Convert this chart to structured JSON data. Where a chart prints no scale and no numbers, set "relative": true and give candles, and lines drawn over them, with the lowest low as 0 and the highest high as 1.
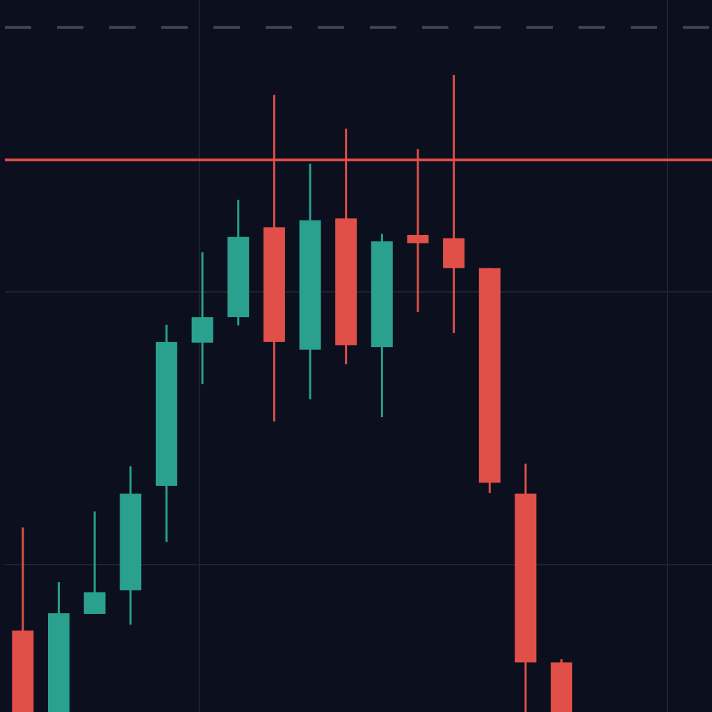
{
  "chart_data": {
    "type": "candlestick",
    "relative": true,
    "tick_labels": false,
    "categories": [
      null,
      null,
      null,
      null,
      null,
      null,
      null,
      null,
      null,
      null,
      null,
      null,
      null,
      null,
      null,
      null,
      null,
      null,
      null,
      null
    ],
    "ohlc": [
      [
        0.128,
        0.29,
        0,
        0
      ],
      [
        0,
        0.204,
        0,
        0.155
      ],
      [
        0.154,
        0.315,
        0.154,
        0.188
      ],
      [
        0.191,
        0.386,
        0.137,
        0.343
      ],
      [
        0.355,
        0.608,
        0.267,
        0.581
      ],
      [
        0.58,
        0.722,
        0.515,
        0.62
      ],
      [
        0.62,
        0.804,
        0.607,
        0.746
      ],
      [
        0.761,
        0.969,
        0.456,
        0.581
      ],
      [
        0.569,
        0.861,
        0.491,
        0.772
      ],
      [
        0.775,
        0.916,
        0.546,
        0.576
      ],
      [
        0.573,
        0.751,
        0.463,
        0.739
      ],
      [
        0.749,
        0.884,
        0.628,
        0.736
      ],
      [
        0.744,
        1,
        0.595,
        0.697
      ],
      [
        0.697,
        0.697,
        0.344,
        0.36
      ],
      [
        0.343,
        0.39,
        0,
        0.078
      ],
      [
        0.078,
        0.083,
        0,
        0
      ],
      null,
      null,
      null,
      null
    ],
    "colors": [
      "#e04f48",
      "#2aa08e",
      "#2aa08e",
      "#2aa08e",
      "#2aa08e",
      "#2aa08e",
      "#2aa08e",
      "#e04f48",
      "#2aa08e",
      "#e04f48",
      "#2aa08e",
      "#e04f48",
      "#e04f48",
      "#e04f48",
      "#e04f48",
      "#e04f48",
      null,
      null,
      null,
      null
    ],
    "ref_lines": [
      {
        "axis": "y",
        "value": 0.867,
        "color": "#e04f48",
        "line_style": "solid"
      },
      {
        "axis": "y",
        "value": 1.075,
        "color": "#3e4b55",
        "line_style": "dashed"
      }
    ]
  }
}
